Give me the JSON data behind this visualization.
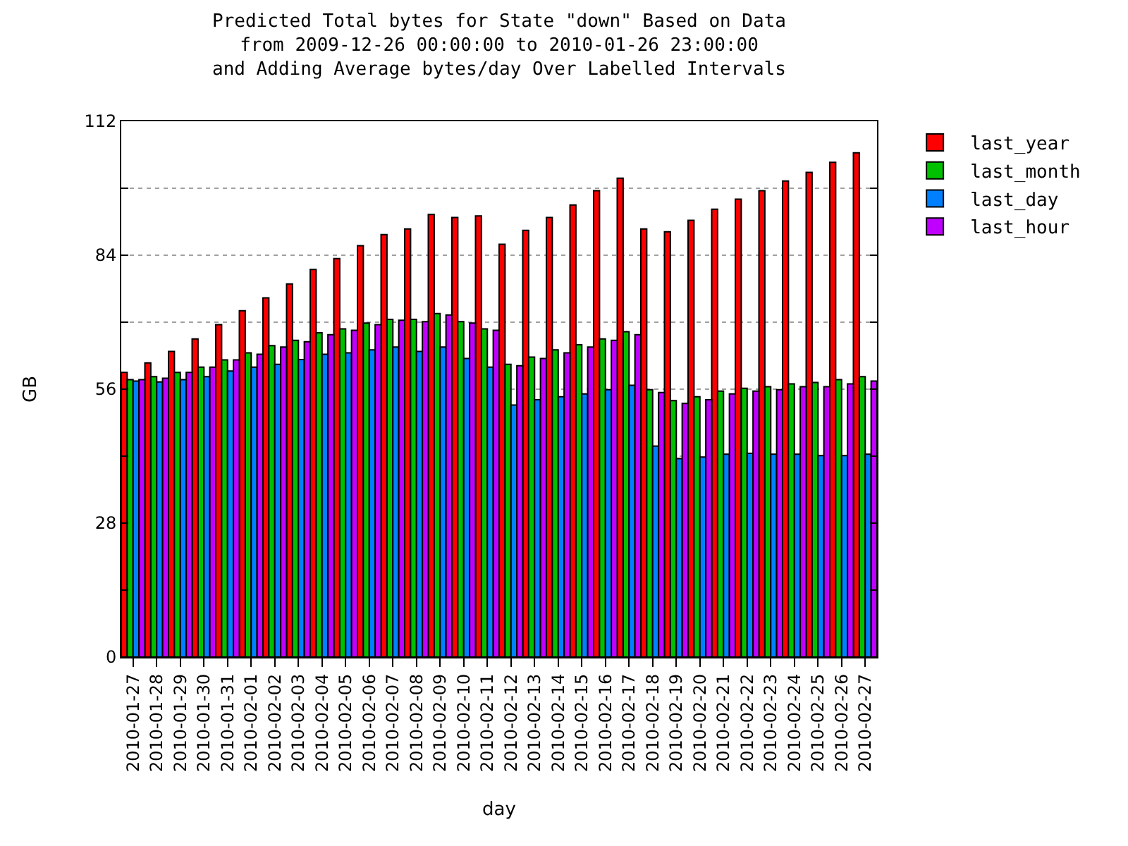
{
  "chart_data": {
    "type": "bar",
    "title": "Predicted Total bytes for State \"down\" Based on Data\nfrom 2009-12-26 00:00:00 to 2010-01-26 23:00:00\nand Adding Average bytes/day Over Labelled Intervals",
    "xlabel": "day",
    "ylabel": "GB",
    "categories": [
      "2010-01-27",
      "2010-01-28",
      "2010-01-29",
      "2010-01-30",
      "2010-01-31",
      "2010-02-01",
      "2010-02-02",
      "2010-02-03",
      "2010-02-04",
      "2010-02-05",
      "2010-02-06",
      "2010-02-07",
      "2010-02-08",
      "2010-02-09",
      "2010-02-10",
      "2010-02-11",
      "2010-02-12",
      "2010-02-13",
      "2010-02-14",
      "2010-02-15",
      "2010-02-16",
      "2010-02-17",
      "2010-02-18",
      "2010-02-19",
      "2010-02-20",
      "2010-02-21",
      "2010-02-22",
      "2010-02-23",
      "2010-02-24",
      "2010-02-25",
      "2010-02-26",
      "2010-02-27"
    ],
    "series": [
      {
        "name": "last_year",
        "color": "#ff0000",
        "values": [
          59.5,
          61.5,
          63.9,
          66.5,
          69.5,
          72.4,
          75.1,
          78.0,
          81.0,
          83.3,
          86.0,
          88.3,
          89.5,
          92.5,
          91.9,
          92.2,
          86.3,
          89.2,
          91.9,
          94.5,
          97.5,
          100.1,
          89.5,
          88.9,
          91.3,
          93.6,
          95.7,
          97.5,
          99.5,
          101.3,
          103.4,
          105.4
        ]
      },
      {
        "name": "last_month",
        "color": "#00c000",
        "values": [
          58.0,
          58.6,
          59.5,
          60.6,
          62.1,
          63.6,
          65.1,
          66.2,
          67.8,
          68.6,
          69.8,
          70.6,
          70.6,
          71.8,
          70.1,
          68.6,
          61.2,
          62.7,
          64.2,
          65.3,
          66.5,
          68.0,
          55.9,
          53.6,
          54.4,
          55.6,
          56.2,
          56.5,
          57.1,
          57.4,
          58.0,
          58.6
        ]
      },
      {
        "name": "last_day",
        "color": "#0080ff",
        "values": [
          57.7,
          57.5,
          58.0,
          58.6,
          59.8,
          60.6,
          61.2,
          62.2,
          63.3,
          63.6,
          64.2,
          64.8,
          63.9,
          64.8,
          62.4,
          60.6,
          52.7,
          53.8,
          54.4,
          55.0,
          55.9,
          56.8,
          44.1,
          41.5,
          41.8,
          42.4,
          42.6,
          42.4,
          42.4,
          42.1,
          42.1,
          42.4
        ]
      },
      {
        "name": "last_hour",
        "color": "#c000ff",
        "values": [
          58.0,
          58.3,
          59.5,
          60.6,
          62.1,
          63.3,
          64.8,
          65.9,
          67.4,
          68.3,
          69.5,
          70.4,
          70.1,
          71.5,
          69.8,
          68.3,
          60.9,
          62.4,
          63.6,
          64.8,
          66.2,
          67.4,
          55.3,
          53.0,
          53.8,
          55.0,
          55.6,
          55.9,
          56.5,
          56.5,
          57.1,
          57.7
        ]
      }
    ],
    "ylim": [
      0,
      112
    ],
    "yticks": [
      0,
      {
        "value": 14,
        "label": null
      },
      28,
      {
        "value": 42,
        "label": null
      },
      56,
      {
        "value": 70,
        "label": null
      },
      84,
      {
        "value": 98,
        "label": null
      },
      112
    ],
    "grid": "y",
    "legend": "top right"
  }
}
